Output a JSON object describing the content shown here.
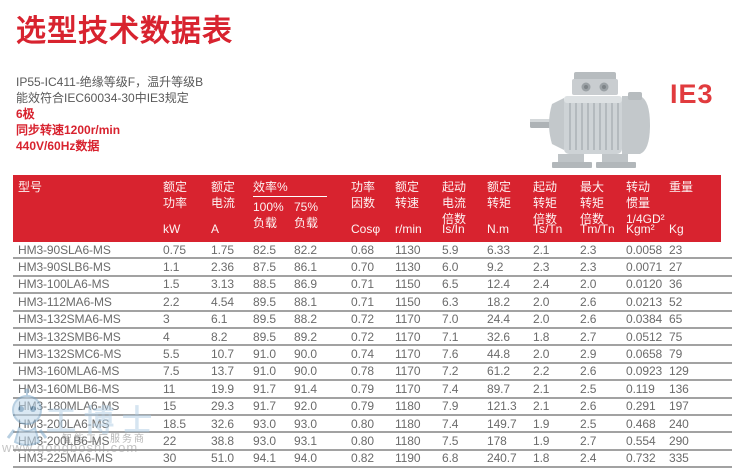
{
  "page": {
    "title": "选型技术数据表",
    "info_lines": [
      "IP55-IC411-绝缘等级F，温升等级B",
      "能效符合IEC60034-30中IE3规定"
    ],
    "highlight_lines": [
      "6极",
      "同步转速1200r/min",
      "440V/60Hz数据"
    ],
    "efficiency_badge": "IE3",
    "motor_image": "three-phase-induction-motor-photo"
  },
  "colors": {
    "accent_red": "#d8232f",
    "badge_red": "#e13b3e",
    "table_text_gray": "#6b6b6b",
    "row_divider_gray": "#a2a2a2",
    "info_text_gray": "#595959"
  },
  "watermark": {
    "logo": "gongboshi-robot-logo",
    "brand": "工博士",
    "tagline": "智能工厂服务商",
    "url": "www.gongboshi.com"
  },
  "table": {
    "header": {
      "columns": [
        {
          "lines": [
            "型号"
          ],
          "unit": ""
        },
        {
          "lines": [
            "额定",
            "功率"
          ],
          "unit": "kW"
        },
        {
          "lines": [
            "额定",
            "电流"
          ],
          "unit": "A"
        },
        {
          "group": "效率%",
          "sub": [
            {
              "lines": [
                "100%",
                "负载"
              ]
            },
            {
              "lines": [
                "75%",
                "负载"
              ]
            }
          ],
          "unit": ""
        },
        {
          "lines": [
            "功率",
            "因数"
          ],
          "unit": "Cosφ"
        },
        {
          "lines": [
            "额定",
            "转速"
          ],
          "unit": "r/min"
        },
        {
          "lines": [
            "起动",
            "电流",
            "倍数"
          ],
          "unit": "Is/In"
        },
        {
          "lines": [
            "额定",
            "转矩"
          ],
          "unit": "N.m"
        },
        {
          "lines": [
            "起动",
            "转矩",
            "倍数"
          ],
          "unit": "Ts/Tn"
        },
        {
          "lines": [
            "最大",
            "转矩",
            "倍数"
          ],
          "unit": "Tm/Tn"
        },
        {
          "lines": [
            "转动",
            "惯量",
            "1/4GD²"
          ],
          "unit": "Kgm²"
        },
        {
          "lines": [
            "重量"
          ],
          "unit": "Kg"
        }
      ]
    },
    "rows": [
      [
        "HM3-90SLA6-MS",
        "0.75",
        "1.75",
        "82.5",
        "82.2",
        "0.68",
        "1130",
        "5.9",
        "6.33",
        "2.1",
        "2.3",
        "0.0058",
        "23"
      ],
      [
        "HM3-90SLB6-MS",
        "1.1",
        "2.36",
        "87.5",
        "86.1",
        "0.70",
        "1130",
        "6.0",
        "9.2",
        "2.3",
        "2.3",
        "0.0071",
        "27"
      ],
      [
        "HM3-100LA6-MS",
        "1.5",
        "3.13",
        "88.5",
        "86.9",
        "0.71",
        "1150",
        "6.5",
        "12.4",
        "2.4",
        "2.0",
        "0.0120",
        "36"
      ],
      [
        "HM3-112MA6-MS",
        "2.2",
        "4.54",
        "89.5",
        "88.1",
        "0.71",
        "1150",
        "6.3",
        "18.2",
        "2.0",
        "2.6",
        "0.0213",
        "52"
      ],
      [
        "HM3-132SMA6-MS",
        "3",
        "6.1",
        "89.5",
        "88.2",
        "0.72",
        "1170",
        "7.0",
        "24.4",
        "2.0",
        "2.6",
        "0.0384",
        "65"
      ],
      [
        "HM3-132SMB6-MS",
        "4",
        "8.2",
        "89.5",
        "89.2",
        "0.72",
        "1170",
        "7.1",
        "32.6",
        "1.8",
        "2.7",
        "0.0512",
        "75"
      ],
      [
        "HM3-132SMC6-MS",
        "5.5",
        "10.7",
        "91.0",
        "90.0",
        "0.74",
        "1170",
        "7.6",
        "44.8",
        "2.0",
        "2.9",
        "0.0658",
        "79"
      ],
      [
        "HM3-160MLA6-MS",
        "7.5",
        "13.7",
        "91.0",
        "90.0",
        "0.78",
        "1170",
        "7.2",
        "61.2",
        "2.2",
        "2.6",
        "0.0923",
        "129"
      ],
      [
        "HM3-160MLB6-MS",
        "11",
        "19.9",
        "91.7",
        "91.4",
        "0.79",
        "1170",
        "7.4",
        "89.7",
        "2.1",
        "2.5",
        "0.119",
        "136"
      ],
      [
        "HM3-180MLA6-MS",
        "15",
        "29.3",
        "91.7",
        "92.0",
        "0.79",
        "1180",
        "7.9",
        "121.3",
        "2.1",
        "2.6",
        "0.291",
        "197"
      ],
      [
        "HM3-200LA6-MS",
        "18.5",
        "32.6",
        "93.0",
        "93.0",
        "0.80",
        "1180",
        "7.4",
        "149.7",
        "1.9",
        "2.5",
        "0.468",
        "240"
      ],
      [
        "HM3-200LB6-MS",
        "22",
        "38.8",
        "93.0",
        "93.1",
        "0.80",
        "1180",
        "7.5",
        "178",
        "1.9",
        "2.7",
        "0.554",
        "290"
      ],
      [
        "HM3-225MA6-MS",
        "30",
        "51.0",
        "94.1",
        "94.0",
        "0.82",
        "1190",
        "6.8",
        "240.7",
        "1.8",
        "2.4",
        "0.732",
        "335"
      ]
    ]
  }
}
